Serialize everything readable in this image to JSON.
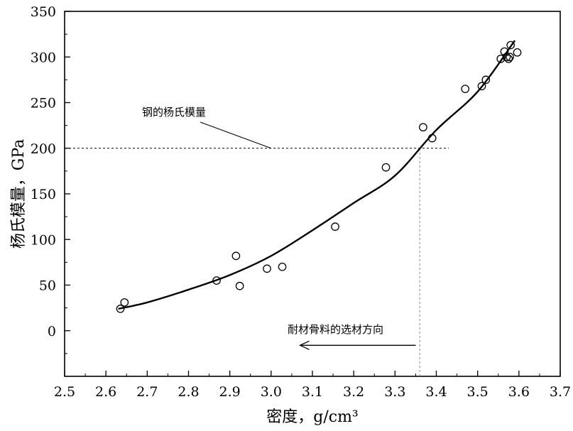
{
  "chart_data": {
    "type": "scatter",
    "xlabel": "密度，g/cm³",
    "ylabel": "杨氏模量，GPa",
    "xlim": [
      2.5,
      3.7
    ],
    "ylim": [
      -50,
      350
    ],
    "x_ticks": [
      "2.5",
      "2.6",
      "2.7",
      "2.8",
      "2.9",
      "3.0",
      "3.1",
      "3.2",
      "3.3",
      "3.4",
      "3.5",
      "3.6",
      "3.7"
    ],
    "y_ticks": [
      "0",
      "50",
      "100",
      "150",
      "200",
      "250",
      "300",
      "350"
    ],
    "grid": false,
    "series": [
      {
        "marker": "open-circle",
        "x": [
          2.635,
          2.645,
          2.868,
          2.915,
          2.924,
          2.99,
          3.027,
          3.155,
          3.278,
          3.368,
          3.39,
          3.47,
          3.51,
          3.52,
          3.556,
          3.565,
          3.57,
          3.575,
          3.578,
          3.58,
          3.596
        ],
        "y": [
          24,
          31,
          55,
          82,
          49,
          68,
          70,
          114,
          179,
          223,
          211,
          265,
          268,
          275,
          298,
          306,
          300,
          298,
          300,
          313,
          305
        ]
      },
      {
        "style": "solid-curve",
        "x": [
          2.63,
          2.7,
          2.8,
          2.9,
          3.0,
          3.1,
          3.2,
          3.3,
          3.4,
          3.5,
          3.59
        ],
        "y": [
          24,
          31,
          45,
          61,
          82,
          110,
          140,
          170,
          220,
          262,
          318
        ]
      }
    ],
    "reference_lines": [
      {
        "orientation": "horizontal",
        "value": 200,
        "x_from": 2.5,
        "x_to": 3.43,
        "style": "dashed"
      },
      {
        "orientation": "vertical",
        "value": 3.36,
        "y_from": -50,
        "y_to": 200,
        "style": "dashed"
      }
    ],
    "annotations": [
      {
        "text": "钢的杨氏模量",
        "arrow_to": [
          3.0,
          200
        ]
      },
      {
        "text": "耐材骨料的选材方向",
        "arrow": "left",
        "arrow_from": [
          3.35,
          -16
        ],
        "arrow_to": [
          3.07,
          -16
        ]
      }
    ]
  }
}
